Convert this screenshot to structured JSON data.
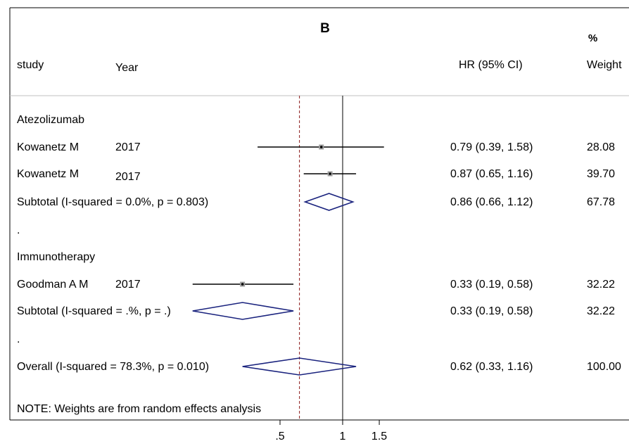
{
  "chart_data": {
    "type": "forest",
    "title": "B",
    "columns": {
      "study": "study",
      "year": "Year",
      "estimate": "HR (95% CI)",
      "weight_top": "%",
      "weight_bottom": "Weight"
    },
    "rows": [
      {
        "kind": "group",
        "label": "Atezolizumab"
      },
      {
        "kind": "study",
        "study": "Kowanetz M",
        "year": "2017",
        "hr": 0.79,
        "lo": 0.39,
        "hi": 1.58,
        "ci_text": "0.79 (0.39, 1.58)",
        "weight": "28.08"
      },
      {
        "kind": "study",
        "study": "Kowanetz M",
        "year": "2017",
        "hr": 0.87,
        "lo": 0.65,
        "hi": 1.16,
        "ci_text": "0.87 (0.65, 1.16)",
        "weight": "39.70"
      },
      {
        "kind": "subtotal",
        "label": "Subtotal  (I-squared = 0.0%, p = 0.803)",
        "hr": 0.86,
        "lo": 0.66,
        "hi": 1.12,
        "ci_text": "0.86 (0.66, 1.12)",
        "weight": "67.78"
      },
      {
        "kind": "spacer",
        "label": "."
      },
      {
        "kind": "group",
        "label": "Immunotherapy"
      },
      {
        "kind": "study",
        "study": "Goodman A M",
        "year": "2017",
        "hr": 0.33,
        "lo": 0.19,
        "hi": 0.58,
        "ci_text": "0.33 (0.19, 0.58)",
        "weight": "32.22"
      },
      {
        "kind": "subtotal",
        "label": "Subtotal  (I-squared = .%, p = .)",
        "hr": 0.33,
        "lo": 0.19,
        "hi": 0.58,
        "ci_text": "0.33 (0.19, 0.58)",
        "weight": "32.22"
      },
      {
        "kind": "spacer",
        "label": "."
      },
      {
        "kind": "overall",
        "label": "Overall  (I-squared = 78.3%, p = 0.010)",
        "hr": 0.62,
        "lo": 0.33,
        "hi": 1.16,
        "ci_text": "0.62 (0.33, 1.16)",
        "weight": "100.00"
      }
    ],
    "note": "NOTE: Weights are from random effects analysis",
    "x_ticks": [
      {
        "value": 0.5,
        "label": ".5"
      },
      {
        "value": 1,
        "label": "1"
      },
      {
        "value": 1.5,
        "label": "1.5"
      }
    ],
    "null_line": 1,
    "overall_line": 0.62,
    "colors": {
      "diamond": "#1a237e",
      "overall_line": "#8b1a1a",
      "marker": "#9e9e9e",
      "line": "#000000",
      "separator": "#c0c0c0"
    }
  }
}
